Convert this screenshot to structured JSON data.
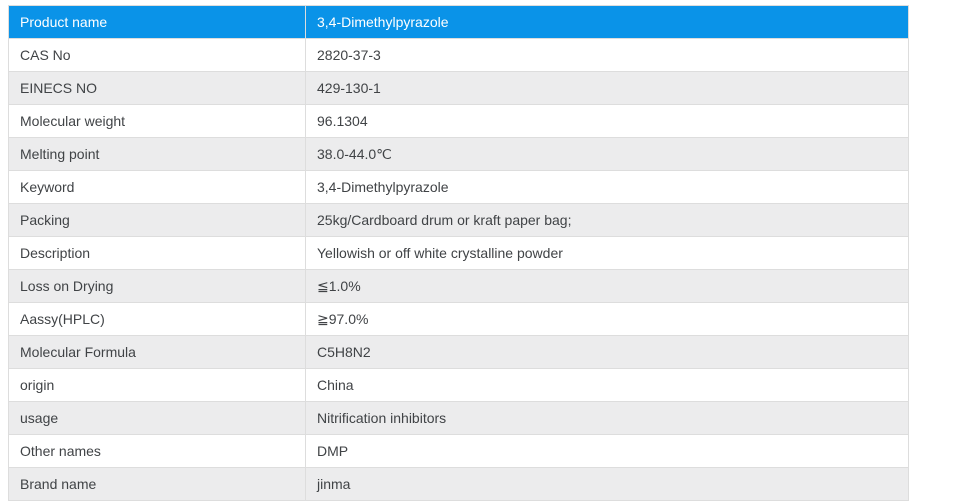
{
  "table": {
    "header": {
      "label": "Product name",
      "value": "3,4-Dimethylpyrazole"
    },
    "rows": [
      {
        "label": "CAS No",
        "value": "2820-37-3"
      },
      {
        "label": "EINECS NO",
        "value": "429-130-1"
      },
      {
        "label": "Molecular weight",
        "value": "96.1304"
      },
      {
        "label": "Melting point",
        "value": "38.0-44.0℃"
      },
      {
        "label": "Keyword",
        "value": "3,4-Dimethylpyrazole"
      },
      {
        "label": "Packing",
        "value": "25kg/Cardboard drum or kraft paper bag;"
      },
      {
        "label": "Description",
        "value": "Yellowish or off white crystalline powder"
      },
      {
        "label": "Loss on Drying",
        "value": "≦1.0%"
      },
      {
        "label": "Aassy(HPLC)",
        "value": "≧97.0%"
      },
      {
        "label": "Molecular Formula",
        "value": "C5H8N2"
      },
      {
        "label": "origin",
        "value": "China"
      },
      {
        "label": "usage",
        "value": "Nitrification inhibitors"
      },
      {
        "label": "Other names",
        "value": "DMP"
      },
      {
        "label": "Brand name",
        "value": "jinma"
      }
    ],
    "colors": {
      "header_bg": "#0a93e8",
      "header_text": "#ffffff",
      "stripe_bg": "#ececed",
      "border": "#dddddd",
      "text": "#404346"
    }
  }
}
